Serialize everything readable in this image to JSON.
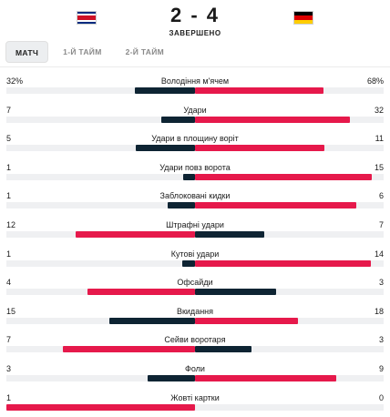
{
  "match": {
    "score": "2 - 4",
    "status": "ЗАВЕРШЕНО",
    "home_flag": "costa-rica-flag",
    "away_flag": "germany-flag"
  },
  "tabs": [
    {
      "label": "МАТЧ",
      "active": true
    },
    {
      "label": "1-Й ТАЙМ",
      "active": false
    },
    {
      "label": "2-Й ТАЙМ",
      "active": false
    }
  ],
  "colors": {
    "leader": "#e6194b",
    "trailer": "#0e2433",
    "track": "#eff0f2"
  },
  "stats": [
    {
      "label": "Володіння м'ячем",
      "home": "32%",
      "away": "68%",
      "home_value": 32,
      "away_value": 68
    },
    {
      "label": "Удари",
      "home": "7",
      "away": "32",
      "home_value": 7,
      "away_value": 32
    },
    {
      "label": "Удари в площину воріт",
      "home": "5",
      "away": "11",
      "home_value": 5,
      "away_value": 11
    },
    {
      "label": "Удари повз ворота",
      "home": "1",
      "away": "15",
      "home_value": 1,
      "away_value": 15
    },
    {
      "label": "Заблоковані кидки",
      "home": "1",
      "away": "6",
      "home_value": 1,
      "away_value": 6
    },
    {
      "label": "Штрафні удари",
      "home": "12",
      "away": "7",
      "home_value": 12,
      "away_value": 7
    },
    {
      "label": "Кутові удари",
      "home": "1",
      "away": "14",
      "home_value": 1,
      "away_value": 14
    },
    {
      "label": "Офсайди",
      "home": "4",
      "away": "3",
      "home_value": 4,
      "away_value": 3
    },
    {
      "label": "Вкидання",
      "home": "15",
      "away": "18",
      "home_value": 15,
      "away_value": 18
    },
    {
      "label": "Сейви воротаря",
      "home": "7",
      "away": "3",
      "home_value": 7,
      "away_value": 3
    },
    {
      "label": "Фоли",
      "home": "3",
      "away": "9",
      "home_value": 3,
      "away_value": 9
    },
    {
      "label": "Жовті картки",
      "home": "1",
      "away": "0",
      "home_value": 1,
      "away_value": 0
    }
  ]
}
